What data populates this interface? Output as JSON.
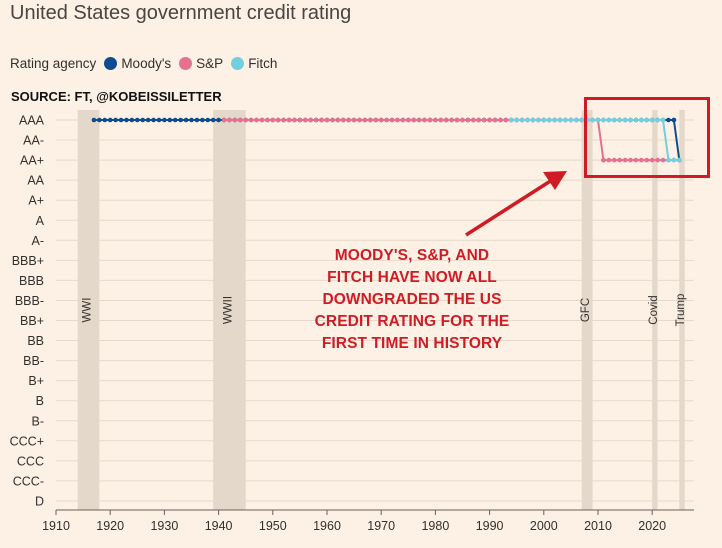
{
  "title": "United States government credit rating",
  "legend": {
    "label": "Rating agency",
    "items": [
      {
        "name": "Moody's",
        "color": "#0f4c8f"
      },
      {
        "name": "S&P",
        "color": "#e3718f"
      },
      {
        "name": "Fitch",
        "color": "#72cfe0"
      }
    ]
  },
  "source": "SOURCE: FT, @KOBEISSILETTER",
  "annotation": {
    "lines": [
      "MOODY'S, S&P, AND",
      "FITCH HAVE NOW ALL",
      "DOWNGRADED THE US",
      "CREDIT RATING FOR THE",
      "FIRST TIME IN HISTORY"
    ],
    "color": "#cf1c24"
  },
  "chart_data": {
    "type": "line",
    "y_categories": [
      "AAA",
      "AA-",
      "AA+",
      "AA",
      "A+",
      "A",
      "A-",
      "BBB+",
      "BBB",
      "BBB-",
      "BB+",
      "BB",
      "BB-",
      "B+",
      "B",
      "B-",
      "CCC+",
      "CCC",
      "CCC-",
      "D"
    ],
    "x_ticks": [
      1910,
      1920,
      1930,
      1940,
      1950,
      1960,
      1970,
      1980,
      1990,
      2000,
      2010,
      2020
    ],
    "xlim": [
      1910,
      2026
    ],
    "series": [
      {
        "name": "Moody's",
        "color": "#0f4c8f",
        "points": [
          [
            1917,
            "AAA"
          ],
          [
            2024,
            "AAA"
          ],
          [
            2025,
            "AA+"
          ]
        ]
      },
      {
        "name": "S&P",
        "color": "#e3718f",
        "points": [
          [
            1941,
            "AAA"
          ],
          [
            2010,
            "AAA"
          ],
          [
            2011,
            "AA+"
          ],
          [
            2025,
            "AA+"
          ]
        ]
      },
      {
        "name": "Fitch",
        "color": "#72cfe0",
        "points": [
          [
            1994,
            "AAA"
          ],
          [
            2022,
            "AAA"
          ],
          [
            2023,
            "AA+"
          ],
          [
            2025,
            "AA+"
          ]
        ]
      }
    ],
    "shaded_periods": [
      {
        "label": "WWI",
        "start": 1914,
        "end": 1918
      },
      {
        "label": "WWII",
        "start": 1939,
        "end": 1945
      },
      {
        "label": "GFC",
        "start": 2007,
        "end": 2009
      },
      {
        "label": "Covid",
        "start": 2020,
        "end": 2021
      },
      {
        "label": "Trump",
        "start": 2025,
        "end": 2026
      }
    ],
    "grid": "horizontal"
  }
}
